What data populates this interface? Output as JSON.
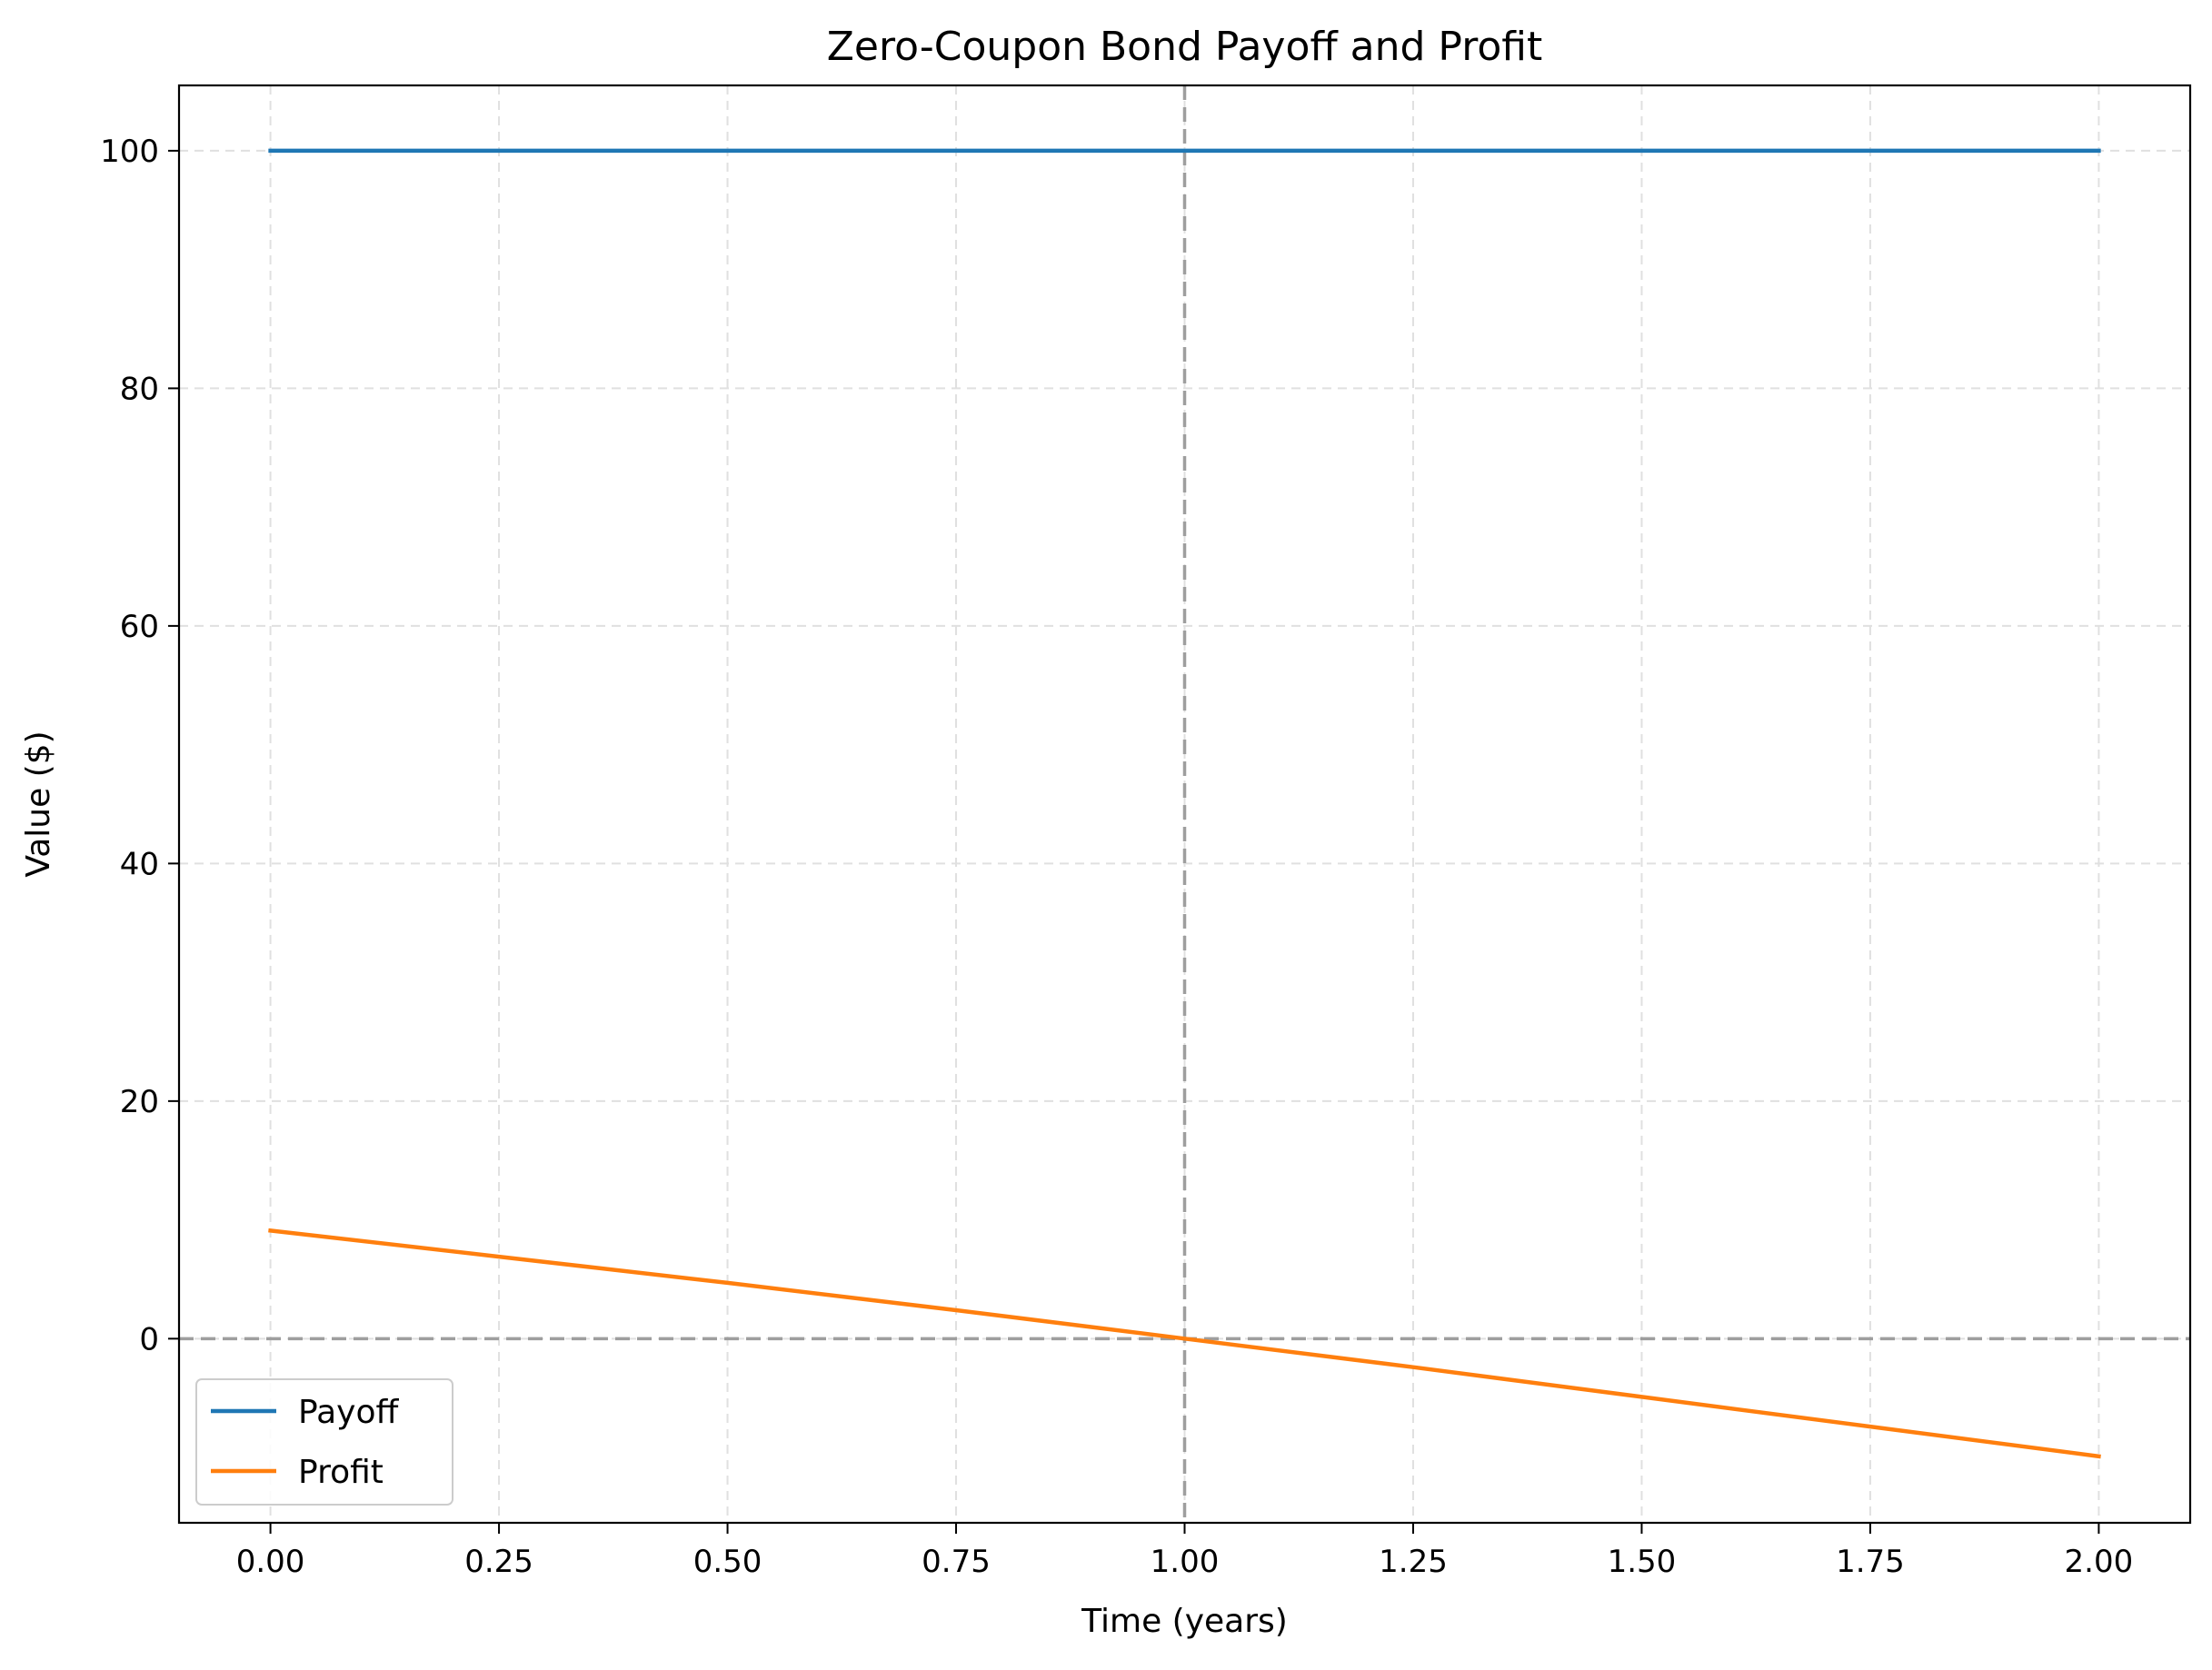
{
  "chart_data": {
    "type": "line",
    "title": "Zero-Coupon Bond Payoff and Profit",
    "xlabel": "Time (years)",
    "ylabel": "Value ($)",
    "xlim": [
      -0.1,
      2.1
    ],
    "ylim": [
      -15.5,
      105.5
    ],
    "xticks": [
      0.0,
      0.25,
      0.5,
      0.75,
      1.0,
      1.25,
      1.5,
      1.75,
      2.0
    ],
    "xtick_labels": [
      "0.00",
      "0.25",
      "0.50",
      "0.75",
      "1.00",
      "1.25",
      "1.50",
      "1.75",
      "2.00"
    ],
    "yticks": [
      0,
      20,
      40,
      60,
      80,
      100
    ],
    "ytick_labels": [
      "0",
      "20",
      "40",
      "60",
      "80",
      "100"
    ],
    "grid": true,
    "legend_position": "lower-left",
    "series": [
      {
        "name": "Payoff",
        "color": "#1f77b4",
        "x": [
          0.0,
          0.5,
          1.0,
          1.5,
          2.0
        ],
        "y": [
          100,
          100,
          100,
          100,
          100
        ]
      },
      {
        "name": "Profit",
        "color": "#ff7f0e",
        "x": [
          0.0,
          0.25,
          0.5,
          0.75,
          1.0,
          1.25,
          1.5,
          1.75,
          2.0
        ],
        "y": [
          9.1,
          6.9,
          4.7,
          2.4,
          0.0,
          -2.4,
          -4.9,
          -7.4,
          -9.9
        ]
      }
    ],
    "reference_lines": [
      {
        "orientation": "horizontal",
        "value": 0,
        "style": "dashed",
        "color": "#9e9e9e"
      },
      {
        "orientation": "vertical",
        "value": 1.0,
        "style": "dashed",
        "color": "#9e9e9e"
      }
    ]
  }
}
